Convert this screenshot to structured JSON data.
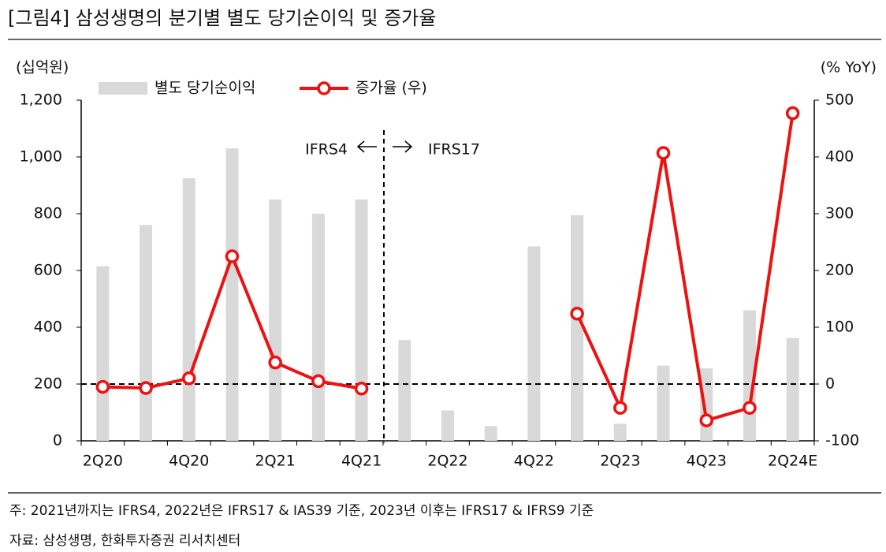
{
  "chart_data": {
    "type": "bar_line",
    "title": "[그림4]   삼성생명의 분기별 별도 당기순이익 및 증가율",
    "y_label": "(십억원)",
    "y2_label": "(% YoY)",
    "categories": [
      "2Q20",
      null,
      "4Q20",
      null,
      "2Q21",
      null,
      "4Q21",
      null,
      "2Q22",
      null,
      "4Q22",
      null,
      "2Q23",
      null,
      "4Q23",
      null,
      "2Q24E"
    ],
    "series": [
      {
        "name": "별도 당기순이익",
        "type": "bar",
        "color": "#d9d9d9",
        "values": [
          615,
          760,
          925,
          1030,
          850,
          800,
          850,
          355,
          107,
          52,
          685,
          795,
          60,
          265,
          255,
          460,
          362
        ]
      },
      {
        "name": "증가율 (우)",
        "type": "line",
        "axis": "y2",
        "color": "#ee1111",
        "values": [
          -5,
          -7,
          10,
          225,
          38,
          5,
          -8,
          null,
          null,
          null,
          null,
          124,
          -42,
          407,
          -64,
          -42,
          477
        ]
      }
    ],
    "ylim": [
      0,
      1200
    ],
    "yticks": [
      0,
      200,
      400,
      600,
      800,
      {
        "value": 1000,
        "label": "1,000"
      },
      {
        "value": 1200,
        "label": "1,200"
      }
    ],
    "y2lim": [
      -100,
      500
    ],
    "y2ticks": [
      -100,
      0,
      100,
      200,
      300,
      400,
      500
    ],
    "annotations": [
      "IFRS4",
      "IFRS17"
    ],
    "notes": [
      "주: 2021년까지는 IFRS4, 2022년은 IFRS17 & IAS39 기준, 2023년 이후는 IFRS17 & IFRS9 기준",
      "자료: 삼성생명, 한화투자증권 리서치센터"
    ]
  }
}
